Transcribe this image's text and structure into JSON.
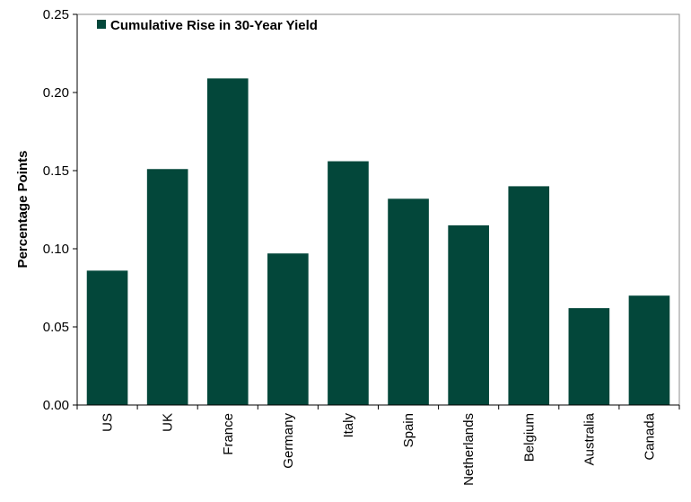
{
  "chart_data": {
    "type": "bar",
    "title": "",
    "xlabel": "",
    "ylabel": "Percentage Points",
    "ylim": [
      0,
      0.25
    ],
    "yticks": [
      "0.00",
      "0.05",
      "0.10",
      "0.15",
      "0.20",
      "0.25"
    ],
    "categories": [
      "US",
      "UK",
      "France",
      "Germany",
      "Italy",
      "Spain",
      "Netherlands",
      "Belgium",
      "Australia",
      "Canada"
    ],
    "series": [
      {
        "name": "Cumulative Rise in 30-Year Yield",
        "values": [
          0.086,
          0.151,
          0.209,
          0.097,
          0.156,
          0.132,
          0.115,
          0.14,
          0.062,
          0.07
        ]
      }
    ],
    "grid": false,
    "legend_position": "top-left",
    "bar_color": "#03473A"
  }
}
